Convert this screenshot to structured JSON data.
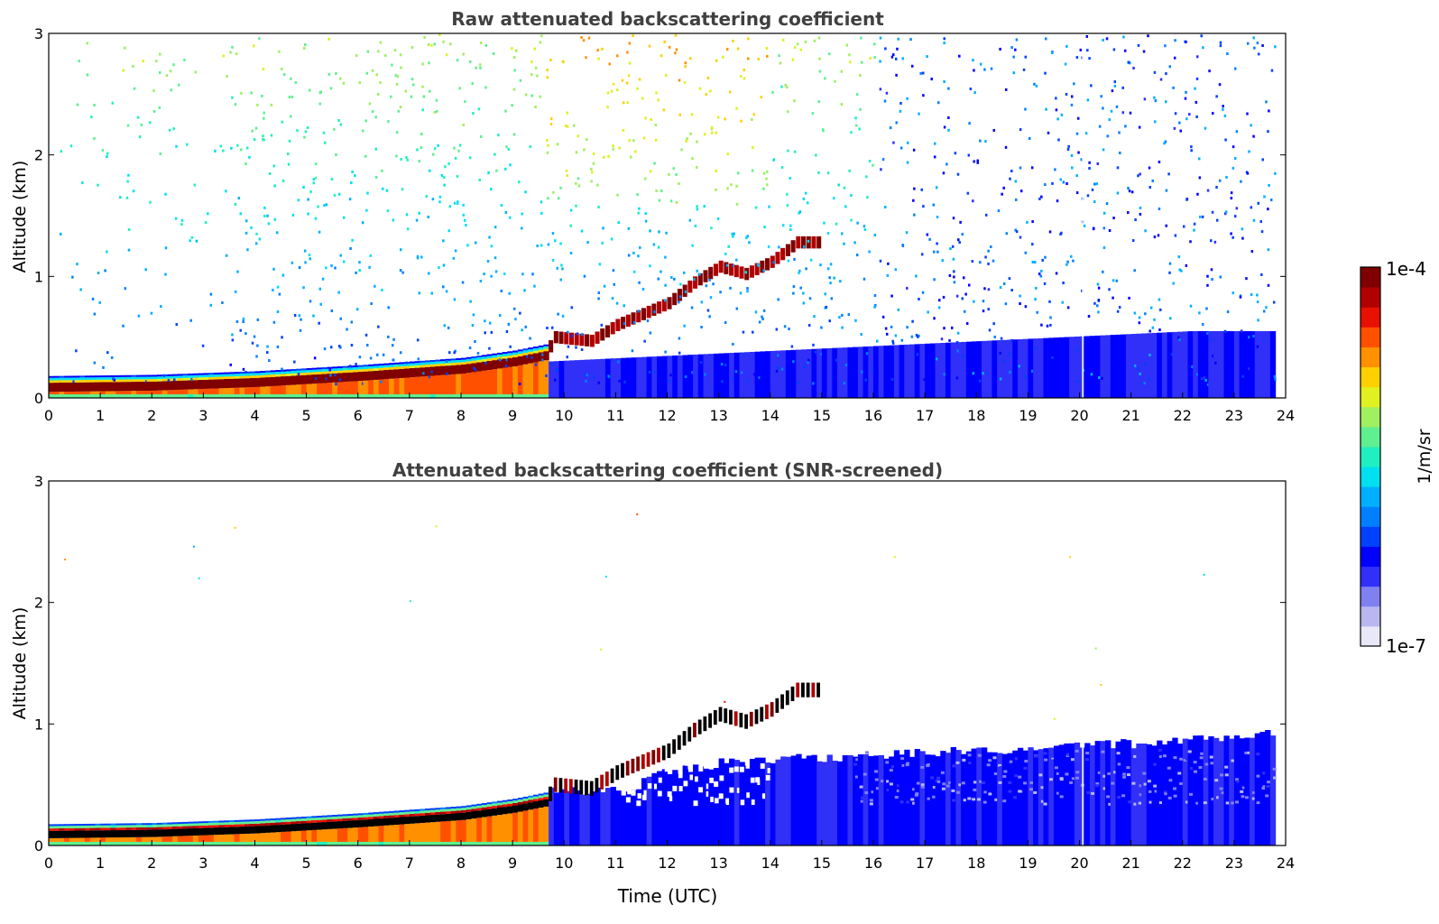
{
  "chart_data": [
    {
      "type": "heatmap",
      "title": "Raw attenuated backscattering coefficient",
      "xlabel": "",
      "ylabel": "Altitude (km)",
      "xlim": [
        0,
        24
      ],
      "ylim": [
        0,
        3
      ],
      "xticks": [
        "0",
        "1",
        "2",
        "3",
        "4",
        "5",
        "6",
        "7",
        "8",
        "9",
        "10",
        "11",
        "12",
        "13",
        "14",
        "15",
        "16",
        "17",
        "18",
        "19",
        "20",
        "21",
        "22",
        "23",
        "24"
      ],
      "yticks": [
        "0",
        "1",
        "2",
        "3"
      ],
      "screened": false,
      "data_end_hour": 23.8,
      "gap_hour": 20.05,
      "cloud_onset_hour": 9.65,
      "layer_height_km": [
        [
          0,
          0.09
        ],
        [
          2,
          0.1
        ],
        [
          4,
          0.13
        ],
        [
          6,
          0.18
        ],
        [
          7,
          0.21
        ],
        [
          8,
          0.24
        ],
        [
          9,
          0.3
        ],
        [
          9.6,
          0.35
        ],
        [
          9.8,
          0.5
        ],
        [
          10.5,
          0.47
        ],
        [
          11,
          0.6
        ],
        [
          12,
          0.78
        ],
        [
          12.5,
          0.95
        ],
        [
          13,
          1.08
        ],
        [
          13.5,
          1.02
        ],
        [
          14,
          1.12
        ],
        [
          14.5,
          1.28
        ]
      ]
    },
    {
      "type": "heatmap",
      "title": "Attenuated backscattering coefficient (SNR-screened)",
      "xlabel": "Time (UTC)",
      "ylabel": "Altitude (km)",
      "xlim": [
        0,
        24
      ],
      "ylim": [
        0,
        3
      ],
      "xticks": [
        "0",
        "1",
        "2",
        "3",
        "4",
        "5",
        "6",
        "7",
        "8",
        "9",
        "10",
        "11",
        "12",
        "13",
        "14",
        "15",
        "16",
        "17",
        "18",
        "19",
        "20",
        "21",
        "22",
        "23",
        "24"
      ],
      "yticks": [
        "0",
        "1",
        "2",
        "3"
      ],
      "screened": true,
      "data_end_hour": 23.8,
      "gap_hour": 20.05,
      "cloud_onset_hour": 9.65,
      "boundary_layer_top_km": [
        [
          11.5,
          0.55
        ],
        [
          12,
          0.6
        ],
        [
          13,
          0.68
        ],
        [
          14,
          0.7
        ],
        [
          14.5,
          0.72
        ],
        [
          15,
          0.72
        ],
        [
          16,
          0.74
        ],
        [
          17,
          0.76
        ],
        [
          18,
          0.78
        ],
        [
          19,
          0.8
        ],
        [
          20,
          0.82
        ],
        [
          21,
          0.84
        ],
        [
          22,
          0.86
        ],
        [
          23,
          0.9
        ],
        [
          23.8,
          0.92
        ]
      ]
    }
  ],
  "colorbar": {
    "label": "1/m/sr",
    "max_label": "1e-4",
    "min_label": "1e-7",
    "colors": [
      "#e8e8f8",
      "#b8b8f0",
      "#8080f0",
      "#3030f8",
      "#0000ff",
      "#0040ff",
      "#0080ff",
      "#00b0ff",
      "#00e0f0",
      "#20f0c0",
      "#60f090",
      "#a0f060",
      "#e0f020",
      "#ffd000",
      "#ff9000",
      "#ff5000",
      "#e81000",
      "#b00000",
      "#800000"
    ]
  }
}
